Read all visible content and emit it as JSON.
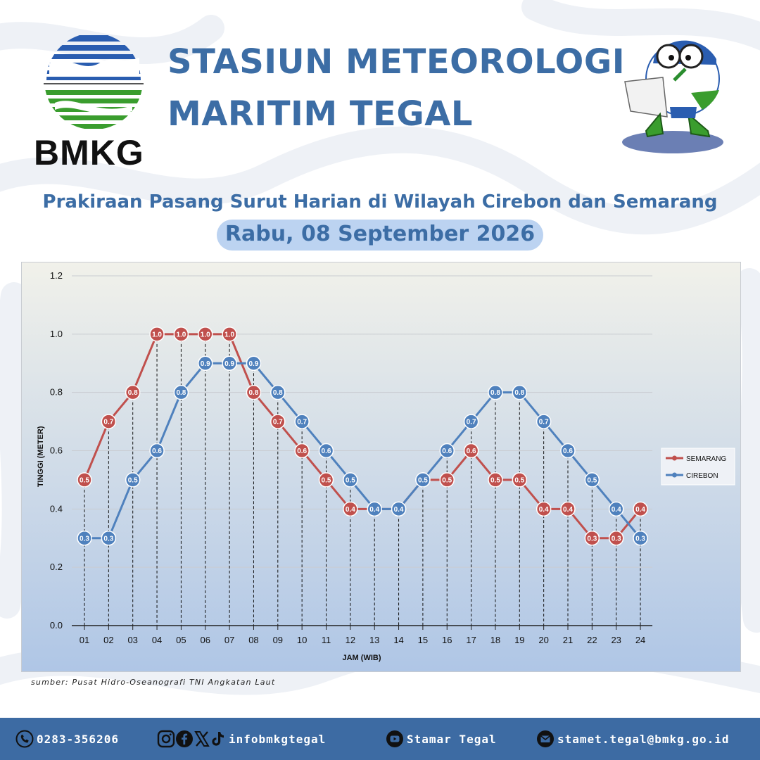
{
  "header": {
    "logo_text": "BMKG",
    "title_line1": "STASIUN METEOROLOGI",
    "title_line2": "MARITIM TEGAL",
    "subtitle": "Prakiraan Pasang Surut Harian di Wilayah Cirebon dan Semarang",
    "date": "Rabu, 08 September 2026"
  },
  "source": "sumber: Pusat Hidro-Oseanografi TNI Angkatan Laut",
  "footer": {
    "phone": "0283-356206",
    "social": "infobmkgtegal",
    "youtube": "Stamar Tegal",
    "email": "stamet.tegal@bmkg.go.id"
  },
  "colors": {
    "semarang": "#c0504d",
    "cirebon": "#4f81bd",
    "title": "#3c6da5",
    "footer": "#3d6ba3"
  },
  "icons": {
    "phone": "phone-icon",
    "instagram": "instagram-icon",
    "facebook": "facebook-icon",
    "x": "x-icon",
    "tiktok": "tiktok-icon",
    "youtube": "youtube-icon",
    "email": "email-icon"
  },
  "chart_data": {
    "type": "line",
    "xlabel": "JAM (WIB)",
    "ylabel": "TINGGI (METER)",
    "ylim": [
      0,
      1.2
    ],
    "yticks": [
      "0.0",
      "0.2",
      "0.4",
      "0.6",
      "0.8",
      "1.0",
      "1.2"
    ],
    "categories": [
      "01",
      "02",
      "03",
      "04",
      "05",
      "06",
      "07",
      "08",
      "09",
      "10",
      "11",
      "12",
      "13",
      "14",
      "15",
      "16",
      "17",
      "18",
      "19",
      "20",
      "21",
      "22",
      "23",
      "24"
    ],
    "legend_position": "right",
    "grid": true,
    "series": [
      {
        "name": "SEMARANG",
        "color": "#c0504d",
        "values": [
          0.5,
          0.7,
          0.8,
          1.0,
          1.0,
          1.0,
          1.0,
          0.8,
          0.7,
          0.6,
          0.5,
          0.4,
          0.4,
          0.4,
          0.5,
          0.5,
          0.6,
          0.5,
          0.5,
          0.4,
          0.4,
          0.3,
          0.3,
          0.4
        ]
      },
      {
        "name": "CIREBON",
        "color": "#4f81bd",
        "values": [
          0.3,
          0.3,
          0.5,
          0.6,
          0.8,
          0.9,
          0.9,
          0.9,
          0.8,
          0.7,
          0.6,
          0.5,
          0.4,
          0.4,
          0.5,
          0.6,
          0.7,
          0.8,
          0.8,
          0.7,
          0.6,
          0.5,
          0.4,
          0.3
        ]
      }
    ]
  }
}
